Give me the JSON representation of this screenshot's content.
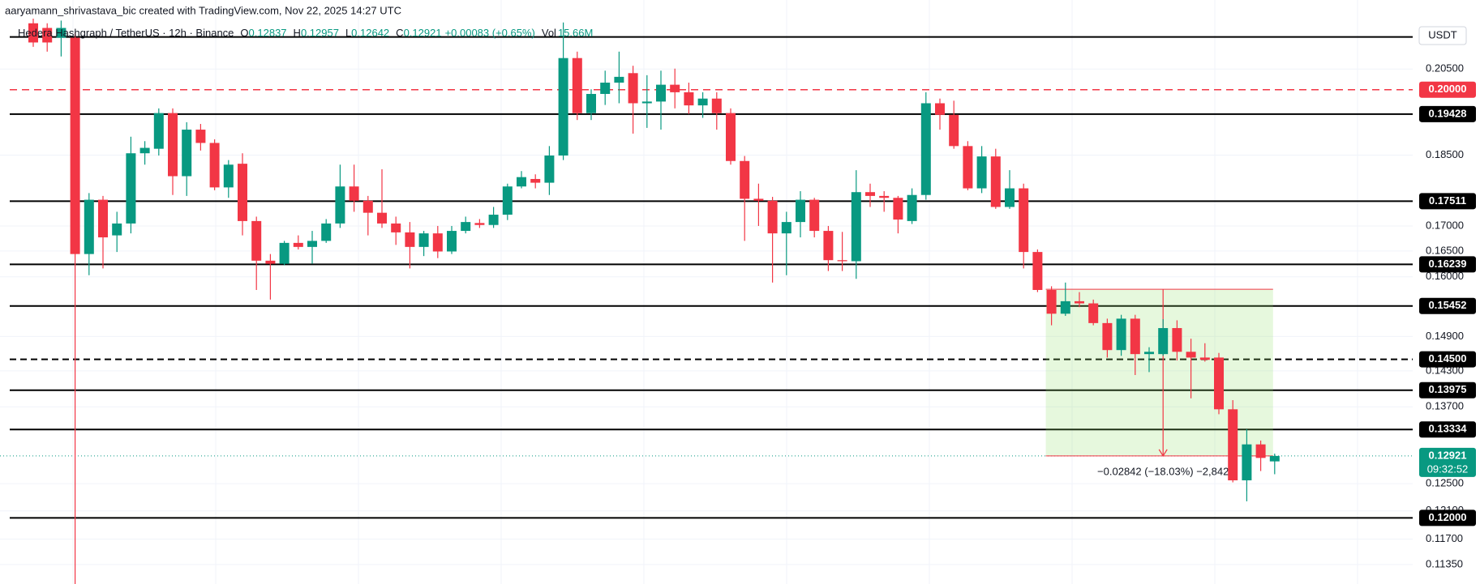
{
  "chart_data": {
    "type": "candlestick",
    "title": "aaryamann_shrivastava_bic created with TradingView.com, Nov 22, 2025 14:27 UTC",
    "symbol": "Hedera Hashgraph / TetherUS · 12h · Binance",
    "legend_keys": [
      "O",
      "H",
      "L",
      "C"
    ],
    "change": "+0.00083 (+0.65%)",
    "volume_key": "Vol",
    "volume": "15.66M",
    "currency": "USDT",
    "countdown": "09:32:52",
    "log_scale": true,
    "grid": true,
    "up_color": "#089981",
    "down_color": "#f23645",
    "ylim": [
      0.1109,
      0.2226
    ],
    "yticks": [
      {
        "value": 0.205,
        "label": "0.20500"
      },
      {
        "value": 0.185,
        "label": "0.18500"
      },
      {
        "value": 0.17,
        "label": "0.17000"
      },
      {
        "value": 0.165,
        "label": "0.16500"
      },
      {
        "value": 0.16,
        "label": "0.16000"
      },
      {
        "value": 0.149,
        "label": "0.14900"
      },
      {
        "value": 0.143,
        "label": "0.14300"
      },
      {
        "value": 0.137,
        "label": "0.13700"
      },
      {
        "value": 0.125,
        "label": "0.12500"
      },
      {
        "value": 0.121,
        "label": "0.12100"
      },
      {
        "value": 0.117,
        "label": "0.11700"
      },
      {
        "value": 0.1135,
        "label": "0.11350"
      }
    ],
    "open": [
      0.2165,
      0.2153,
      0.2128,
      0.2128,
      0.1644,
      0.1754,
      0.1681,
      0.1705,
      0.1854,
      0.1864,
      0.1945,
      0.1804,
      0.1907,
      0.1877,
      0.178,
      0.1831,
      0.171,
      0.1631,
      0.1625,
      0.1666,
      0.1658,
      0.167,
      0.1705,
      0.1782,
      0.1752,
      0.1727,
      0.1705,
      0.1687,
      0.1658,
      0.1685,
      0.1649,
      0.169,
      0.1706,
      0.1702,
      0.1723,
      0.1782,
      0.1798,
      0.179,
      0.1849,
      0.2077,
      0.1945,
      0.199,
      0.2017,
      0.204,
      0.1968,
      0.1972,
      0.2012,
      0.1994,
      0.1963,
      0.1979,
      0.1945,
      0.1837,
      0.1756,
      0.1752,
      0.1685,
      0.1708,
      0.1754,
      0.169,
      0.1632,
      0.163,
      0.177,
      0.1762,
      0.1758,
      0.171,
      0.1764,
      0.1968,
      0.1941,
      0.187,
      0.1778,
      0.1847,
      0.1739,
      0.1778,
      0.1648,
      0.1575,
      0.1531,
      0.1554,
      0.155,
      0.1514,
      0.1466,
      0.1522,
      0.1459,
      0.1459,
      0.1505,
      0.1463,
      0.1453,
      0.1453,
      0.1366,
      0.1255,
      0.131,
      0.12837
    ],
    "high": [
      0.2177,
      0.2165,
      0.2172,
      0.214,
      0.1768,
      0.1762,
      0.1729,
      0.1891,
      0.1881,
      0.1956,
      0.1956,
      0.1924,
      0.192,
      0.1885,
      0.1839,
      0.1854,
      0.1719,
      0.1644,
      0.167,
      0.1681,
      0.169,
      0.1714,
      0.1829,
      0.1829,
      0.1762,
      0.1819,
      0.1719,
      0.1708,
      0.169,
      0.17,
      0.17,
      0.1719,
      0.1714,
      0.1739,
      0.1788,
      0.1815,
      0.1808,
      0.187,
      0.2167,
      0.2093,
      0.2001,
      0.2046,
      0.2093,
      0.2058,
      0.2035,
      0.2046,
      0.2051,
      0.2017,
      0.1994,
      0.1994,
      0.1956,
      0.1848,
      0.1788,
      0.176,
      0.1729,
      0.1772,
      0.1758,
      0.17,
      0.1688,
      0.1817,
      0.1788,
      0.1772,
      0.1762,
      0.1778,
      0.1994,
      0.1979,
      0.1974,
      0.1881,
      0.187,
      0.1864,
      0.1817,
      0.1788,
      0.1653,
      0.1582,
      0.1589,
      0.1571,
      0.1557,
      0.1522,
      0.1529,
      0.1529,
      0.1471,
      0.1521,
      0.1519,
      0.1486,
      0.1478,
      0.1461,
      0.1381,
      0.1334,
      0.1316,
      0.12957
    ],
    "low": [
      0.2105,
      0.2093,
      0.2081,
      0.1109,
      0.1603,
      0.1616,
      0.1648,
      0.1685,
      0.1829,
      0.1849,
      0.1764,
      0.1762,
      0.186,
      0.1774,
      0.1758,
      0.1681,
      0.1575,
      0.1557,
      0.1622,
      0.1653,
      0.1625,
      0.1666,
      0.1696,
      0.1729,
      0.1681,
      0.1696,
      0.1662,
      0.1616,
      0.164,
      0.1636,
      0.1644,
      0.1685,
      0.1696,
      0.1696,
      0.1712,
      0.1778,
      0.1778,
      0.1764,
      0.1839,
      0.1929,
      0.1929,
      0.1964,
      0.1968,
      0.1898,
      0.1911,
      0.1907,
      0.1956,
      0.1943,
      0.1934,
      0.1907,
      0.1829,
      0.167,
      0.17,
      0.1589,
      0.1603,
      0.1677,
      0.1677,
      0.1611,
      0.1611,
      0.1596,
      0.1739,
      0.1729,
      0.1685,
      0.1704,
      0.1754,
      0.1907,
      0.1864,
      0.1774,
      0.1768,
      0.1735,
      0.1735,
      0.1616,
      0.1571,
      0.151,
      0.1527,
      0.1543,
      0.151,
      0.1453,
      0.1456,
      0.1423,
      0.1428,
      0.1456,
      0.1448,
      0.1384,
      0.1446,
      0.1358,
      0.1252,
      0.1224,
      0.1269,
      0.12642
    ],
    "close": [
      0.2116,
      0.2116,
      0.2153,
      0.1644,
      0.1754,
      0.1677,
      0.1705,
      0.1854,
      0.1866,
      0.1945,
      0.1804,
      0.1907,
      0.1877,
      0.178,
      0.1829,
      0.171,
      0.1631,
      0.1625,
      0.1666,
      0.1658,
      0.167,
      0.1705,
      0.1782,
      0.1752,
      0.1727,
      0.1705,
      0.1687,
      0.1658,
      0.1685,
      0.1649,
      0.169,
      0.1708,
      0.1702,
      0.1723,
      0.1782,
      0.1802,
      0.179,
      0.1849,
      0.2077,
      0.1945,
      0.199,
      0.2017,
      0.2031,
      0.1968,
      0.1972,
      0.2012,
      0.1994,
      0.1963,
      0.1979,
      0.1945,
      0.1837,
      0.1756,
      0.1752,
      0.1685,
      0.1708,
      0.1754,
      0.169,
      0.1632,
      0.163,
      0.177,
      0.1762,
      0.1758,
      0.1713,
      0.1764,
      0.1968,
      0.1941,
      0.187,
      0.1778,
      0.1847,
      0.1739,
      0.1778,
      0.1648,
      0.1575,
      0.1531,
      0.1554,
      0.155,
      0.1514,
      0.1466,
      0.1522,
      0.1459,
      0.1463,
      0.1505,
      0.1463,
      0.1453,
      0.1449,
      0.1366,
      0.1255,
      0.131,
      0.1289,
      0.12921
    ],
    "levels": [
      0.19428,
      0.17511,
      0.16239,
      0.15452,
      {
        "value": 0.145,
        "label": "0.14500"
      },
      0.13975,
      0.13334,
      {
        "value": 0.12,
        "label": "0.12000"
      }
    ],
    "dashed_levels": [
      {
        "value": 0.145,
        "label": "0.14500"
      }
    ],
    "alert_level": {
      "value": 0.2,
      "label": "0.20000"
    },
    "unlabeled_levels": [
      0.213
    ],
    "measure": {
      "from": 0.15763,
      "to": 0.12921,
      "start": 73,
      "end": 89,
      "arrow": 81,
      "label": "−0.02842 (−18.03%) −2,842"
    }
  }
}
